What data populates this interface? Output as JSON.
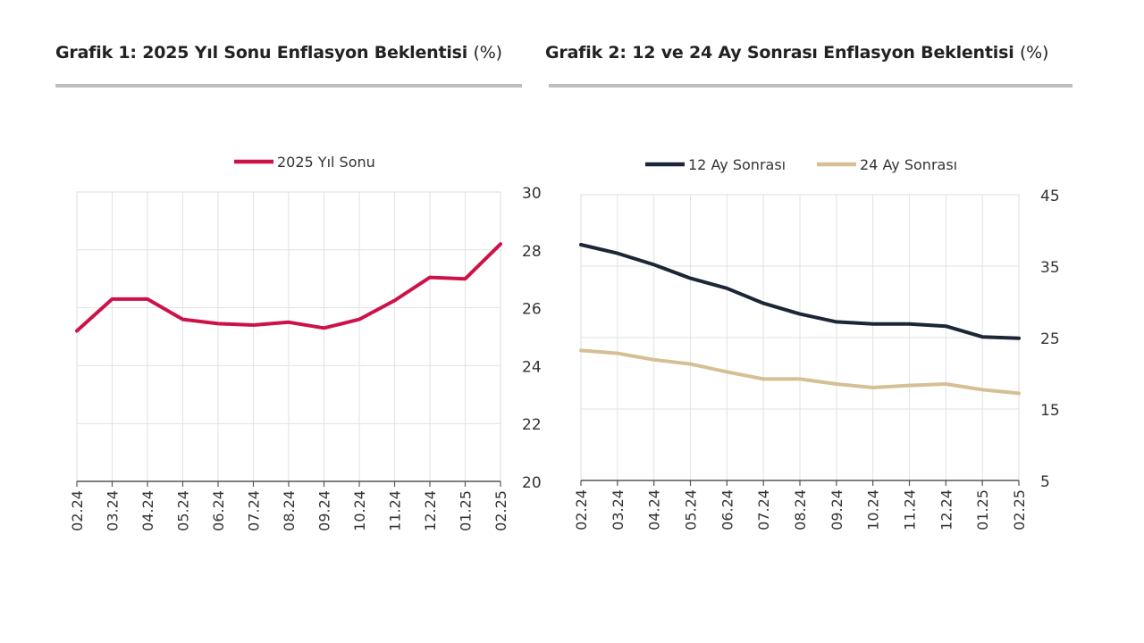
{
  "chart_data": [
    {
      "type": "line",
      "title": "Grafik 1: 2025 Yıl Sonu Enflasyon Beklentisi",
      "unit": "(%)",
      "categories": [
        "02.24",
        "03.24",
        "04.24",
        "05.24",
        "06.24",
        "07.24",
        "08.24",
        "09.24",
        "10.24",
        "11.24",
        "12.24",
        "01.25",
        "02.25"
      ],
      "series": [
        {
          "name": "2025 Yıl Sonu",
          "color": "#cc1248",
          "values": [
            25.2,
            26.3,
            26.3,
            25.6,
            25.45,
            25.4,
            25.5,
            25.3,
            25.6,
            26.25,
            27.05,
            27.0,
            28.2
          ]
        }
      ],
      "ylim": [
        20,
        30
      ],
      "yticks": [
        20,
        22,
        24,
        26,
        28,
        30
      ],
      "grid": true,
      "legend": "top"
    },
    {
      "type": "line",
      "title": "Grafik 2: 12 ve 24 Ay Sonrası Enflasyon Beklentisi",
      "unit": "(%)",
      "categories": [
        "02.24",
        "03.24",
        "04.24",
        "05.24",
        "06.24",
        "07.24",
        "08.24",
        "09.24",
        "10.24",
        "11.24",
        "12.24",
        "01.25",
        "02.25"
      ],
      "series": [
        {
          "name": "12 Ay Sonrası",
          "color": "#1b2636",
          "values": [
            38.0,
            36.8,
            35.2,
            33.3,
            31.9,
            29.8,
            28.3,
            27.2,
            26.9,
            26.9,
            26.6,
            25.1,
            24.9
          ]
        },
        {
          "name": "24 Ay Sonrası",
          "color": "#d6bf94",
          "values": [
            23.2,
            22.8,
            21.9,
            21.3,
            20.2,
            19.2,
            19.2,
            18.5,
            18.0,
            18.3,
            18.5,
            17.7,
            17.2
          ]
        }
      ],
      "ylim": [
        5,
        45
      ],
      "yticks": [
        5,
        15,
        25,
        35,
        45
      ],
      "grid": true,
      "legend": "top"
    }
  ]
}
